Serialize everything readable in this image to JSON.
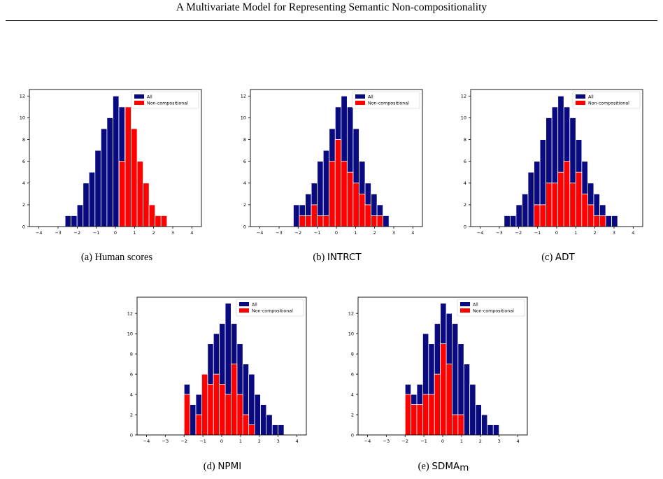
{
  "header": {
    "title": "A Multivariate Model for Representing Semantic Non-compositionality"
  },
  "colors": {
    "all": "#0a0a80",
    "noncomp": "#ff0000",
    "bar_edge": "#ffffff",
    "axis": "#000000"
  },
  "chart_data": [
    {
      "type": "bar",
      "caption_prefix": "(a)",
      "caption_main": "Human scores",
      "caption_sub": "",
      "caption_style": "serif",
      "xlim": [
        -4.5,
        4.5
      ],
      "ylim": [
        0,
        12.6
      ],
      "xticks": [
        -4,
        -3,
        -2,
        -1,
        0,
        1,
        2,
        3,
        4
      ],
      "xtick_labels": [
        "−4",
        "−3",
        "−2",
        "−1",
        "0",
        "1",
        "2",
        "3",
        "4"
      ],
      "yticks": [
        0,
        2,
        4,
        6,
        8,
        10,
        12
      ],
      "ytick_labels": [
        "0",
        "2",
        "4",
        "6",
        "8",
        "10",
        "12"
      ],
      "legend": {
        "position": "top-right",
        "entries": [
          "All",
          "Non-compositional"
        ]
      },
      "series": [
        {
          "name": "All",
          "bin_start": -2.63,
          "bin_width": 0.3125,
          "values": [
            1,
            1,
            2,
            4,
            5,
            7,
            9,
            10,
            12,
            11,
            10,
            9,
            6,
            4,
            2,
            1,
            1
          ]
        },
        {
          "name": "Non-compositional",
          "bin_start": 0.2,
          "bin_width": 0.3125,
          "values": [
            6,
            11,
            9,
            6,
            4,
            2,
            1,
            1
          ]
        }
      ]
    },
    {
      "type": "bar",
      "caption_prefix": "(b)",
      "caption_main": "INTRCT",
      "caption_sub": "",
      "caption_style": "sans",
      "xlim": [
        -4.5,
        4.5
      ],
      "ylim": [
        0,
        12.6
      ],
      "xticks": [
        -4,
        -3,
        -2,
        -1,
        0,
        1,
        2,
        3,
        4
      ],
      "xtick_labels": [
        "−4",
        "−3",
        "−2",
        "−1",
        "0",
        "1",
        "2",
        "3",
        "4"
      ],
      "yticks": [
        0,
        2,
        4,
        6,
        8,
        10,
        12
      ],
      "ytick_labels": [
        "0",
        "2",
        "4",
        "6",
        "8",
        "10",
        "12"
      ],
      "legend": {
        "position": "top-right",
        "entries": [
          "All",
          "Non-compositional"
        ]
      },
      "series": [
        {
          "name": "All",
          "bin_start": -2.25,
          "bin_width": 0.3125,
          "values": [
            2,
            2,
            3,
            4,
            6,
            7,
            9,
            11,
            12,
            11,
            9,
            6,
            4,
            3,
            2,
            1
          ]
        },
        {
          "name": "Non-compositional",
          "bin_start": -1.94,
          "bin_width": 0.3125,
          "values": [
            1,
            1,
            2,
            1,
            1,
            6,
            8,
            6,
            5,
            4,
            3,
            2,
            1,
            1
          ]
        }
      ]
    },
    {
      "type": "bar",
      "caption_prefix": "(c)",
      "caption_main": "ADT",
      "caption_sub": "",
      "caption_style": "sans",
      "xlim": [
        -4.5,
        4.5
      ],
      "ylim": [
        0,
        12.6
      ],
      "xticks": [
        -4,
        -3,
        -2,
        -1,
        0,
        1,
        2,
        3,
        4
      ],
      "xtick_labels": [
        "−4",
        "−3",
        "−2",
        "−1",
        "0",
        "1",
        "2",
        "3",
        "4"
      ],
      "yticks": [
        0,
        2,
        4,
        6,
        8,
        10,
        12
      ],
      "ytick_labels": [
        "0",
        "2",
        "4",
        "6",
        "8",
        "10",
        "12"
      ],
      "legend": {
        "position": "top-right",
        "entries": [
          "All",
          "Non-compositional"
        ]
      },
      "series": [
        {
          "name": "All",
          "bin_start": -2.75,
          "bin_width": 0.3125,
          "values": [
            1,
            1,
            2,
            3,
            5,
            6,
            8,
            10,
            11,
            12,
            11,
            10,
            8,
            6,
            4,
            3,
            2,
            1,
            1
          ]
        },
        {
          "name": "Non-compositional",
          "bin_start": -1.19,
          "bin_width": 0.3125,
          "values": [
            2,
            2,
            4,
            4,
            5,
            6,
            4,
            5,
            3,
            2,
            1,
            1
          ]
        }
      ]
    },
    {
      "type": "bar",
      "caption_prefix": "(d)",
      "caption_main": "NPMI",
      "caption_sub": "",
      "caption_style": "sans",
      "xlim": [
        -4.5,
        4.5
      ],
      "ylim": [
        0,
        13.6
      ],
      "xticks": [
        -4,
        -3,
        -2,
        -1,
        0,
        1,
        2,
        3,
        4
      ],
      "xtick_labels": [
        "−4",
        "−3",
        "−2",
        "−1",
        "0",
        "1",
        "2",
        "3",
        "4"
      ],
      "yticks": [
        0,
        2,
        4,
        6,
        8,
        10,
        12
      ],
      "ytick_labels": [
        "0",
        "2",
        "4",
        "6",
        "8",
        "10",
        "12"
      ],
      "legend": {
        "position": "top-right",
        "entries": [
          "All",
          "Non-compositional"
        ]
      },
      "series": [
        {
          "name": "All",
          "bin_start": -2.0,
          "bin_width": 0.3125,
          "values": [
            5,
            3,
            4,
            6,
            9,
            10,
            11,
            13,
            11,
            9,
            7,
            6,
            4,
            3,
            2,
            1,
            1
          ]
        },
        {
          "name": "Non-compositional",
          "bin_start": -2.0,
          "bin_width": 0.3125,
          "values": [
            4,
            0,
            2,
            6,
            5,
            6,
            5,
            4,
            7,
            4,
            2,
            1
          ]
        }
      ]
    },
    {
      "type": "bar",
      "caption_prefix": "(e)",
      "caption_main": "SDMA",
      "caption_sub": "m",
      "caption_style": "sans",
      "xlim": [
        -4.5,
        4.5
      ],
      "ylim": [
        0,
        13.6
      ],
      "xticks": [
        -4,
        -3,
        -2,
        -1,
        0,
        1,
        2,
        3,
        4
      ],
      "xtick_labels": [
        "−4",
        "−3",
        "−2",
        "−1",
        "0",
        "1",
        "2",
        "3",
        "4"
      ],
      "yticks": [
        0,
        2,
        4,
        6,
        8,
        10,
        12
      ],
      "ytick_labels": [
        "0",
        "2",
        "4",
        "6",
        "8",
        "10",
        "12"
      ],
      "legend": {
        "position": "top-right",
        "entries": [
          "All",
          "Non-compositional"
        ]
      },
      "series": [
        {
          "name": "All",
          "bin_start": -2.0,
          "bin_width": 0.3125,
          "values": [
            5,
            4,
            5,
            10,
            9,
            11,
            13,
            12,
            11,
            9,
            7,
            5,
            3,
            2,
            1,
            1
          ]
        },
        {
          "name": "Non-compositional",
          "bin_start": -2.0,
          "bin_width": 0.3125,
          "values": [
            4,
            3,
            3,
            4,
            4,
            6,
            9,
            7,
            2,
            2
          ]
        }
      ]
    }
  ]
}
